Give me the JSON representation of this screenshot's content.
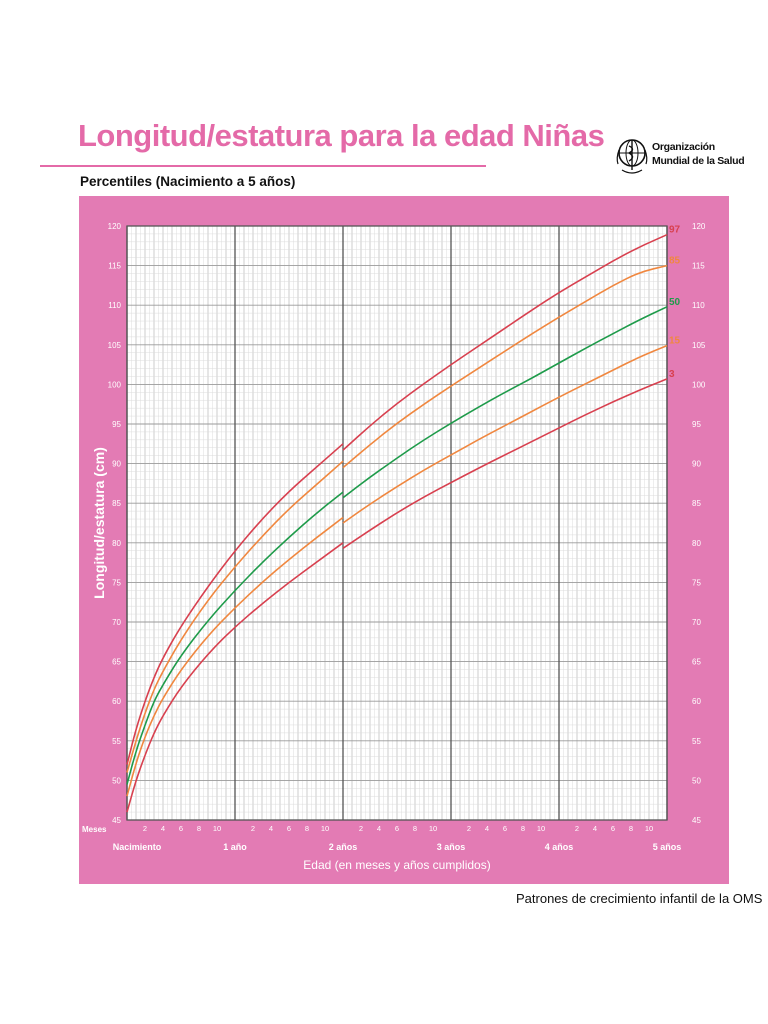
{
  "header": {
    "title": "Longitud/estatura para la edad Niñas",
    "subtitle": "Percentiles (Nacimiento a 5 años)",
    "org_line1": "Organización",
    "org_line2": "Mundial de la Salud",
    "logo_icon": "who-emblem-icon"
  },
  "footer": {
    "text": "Patrones de crecimiento infantil de la OMS"
  },
  "colors": {
    "background_panel": "#e37bb4",
    "grid_major": "#666666",
    "grid_minor": "#cfcfcf",
    "p3": "#d8404f",
    "p15": "#f0873f",
    "p50": "#1e9b4a",
    "p85": "#f0873f",
    "p97": "#d8404f"
  },
  "chart_data": {
    "type": "line",
    "title": "Longitud/estatura para la edad Niñas",
    "subtitle": "Percentiles (Nacimiento a 5 años)",
    "xlabel": "Edad (en meses y años cumplidos)",
    "ylabel": "Longitud/estatura (cm)",
    "x_unit_label": "Meses",
    "xlim": [
      0,
      60
    ],
    "ylim": [
      45,
      120
    ],
    "y_ticks": [
      45,
      50,
      55,
      60,
      65,
      70,
      75,
      80,
      85,
      90,
      95,
      100,
      105,
      110,
      115,
      120
    ],
    "x_month_ticks": [
      "2",
      "4",
      "6",
      "8",
      "10"
    ],
    "x_year_labels": [
      {
        "month": 0,
        "label": "Nacimiento"
      },
      {
        "month": 12,
        "label": "1 año"
      },
      {
        "month": 24,
        "label": "2 años"
      },
      {
        "month": 36,
        "label": "3 años"
      },
      {
        "month": 48,
        "label": "4 años"
      },
      {
        "month": 60,
        "label": "5 años"
      }
    ],
    "grid": true,
    "legend": "labels at right end of each curve",
    "x": [
      0,
      1,
      2,
      3,
      4,
      6,
      9,
      12,
      15,
      18,
      21,
      24,
      24,
      27,
      30,
      33,
      36,
      39,
      42,
      45,
      48,
      51,
      54,
      57,
      60
    ],
    "series": [
      {
        "name": "97",
        "values": [
          52.0,
          56.5,
          60.0,
          63.0,
          65.5,
          69.5,
          74.5,
          79.0,
          83.0,
          86.5,
          89.5,
          92.5,
          91.7,
          94.8,
          97.6,
          100.1,
          102.5,
          104.8,
          107.1,
          109.4,
          111.6,
          113.6,
          115.6,
          117.4,
          118.9
        ]
      },
      {
        "name": "85",
        "values": [
          51.0,
          55.0,
          58.5,
          61.5,
          63.8,
          67.8,
          72.8,
          77.0,
          80.8,
          84.3,
          87.3,
          90.3,
          89.5,
          92.4,
          95.1,
          97.5,
          99.8,
          102.0,
          104.2,
          106.4,
          108.5,
          110.5,
          112.5,
          114.2,
          115.0
        ]
      },
      {
        "name": "50",
        "values": [
          49.5,
          53.7,
          57.0,
          60.0,
          62.1,
          65.8,
          70.2,
          74.0,
          77.5,
          80.7,
          83.7,
          86.4,
          85.7,
          88.3,
          90.7,
          93.0,
          95.1,
          97.1,
          99.0,
          100.8,
          102.7,
          104.6,
          106.4,
          108.2,
          109.8
        ]
      },
      {
        "name": "15",
        "values": [
          48.0,
          52.2,
          55.5,
          58.2,
          60.4,
          64.0,
          68.3,
          71.8,
          75.0,
          77.9,
          80.6,
          83.2,
          82.5,
          84.9,
          87.1,
          89.2,
          91.1,
          93.0,
          94.8,
          96.6,
          98.4,
          100.1,
          101.8,
          103.5,
          104.9
        ]
      },
      {
        "name": "3",
        "values": [
          46.0,
          50.0,
          53.2,
          56.0,
          58.2,
          61.8,
          66.0,
          69.4,
          72.3,
          75.0,
          77.5,
          80.0,
          79.3,
          81.6,
          83.8,
          85.8,
          87.6,
          89.4,
          91.1,
          92.8,
          94.5,
          96.2,
          97.8,
          99.3,
          100.7
        ]
      }
    ]
  }
}
